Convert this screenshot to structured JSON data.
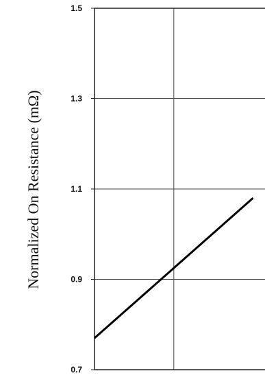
{
  "chart_data": {
    "type": "line",
    "title": "",
    "xlabel": "",
    "ylabel": "Normalized On Resistance (mΩ)",
    "ylim": [
      0.7,
      1.5
    ],
    "y_ticks": [
      "1.5",
      "1.3",
      "1.1",
      "0.9",
      "0.7"
    ],
    "grid": true,
    "legend": "none",
    "series": [
      {
        "color": "#000000",
        "x": [
          0,
          1,
          2
        ],
        "y": [
          0.77,
          0.925,
          1.08
        ]
      }
    ],
    "xlim": [
      0,
      2.15
    ]
  }
}
